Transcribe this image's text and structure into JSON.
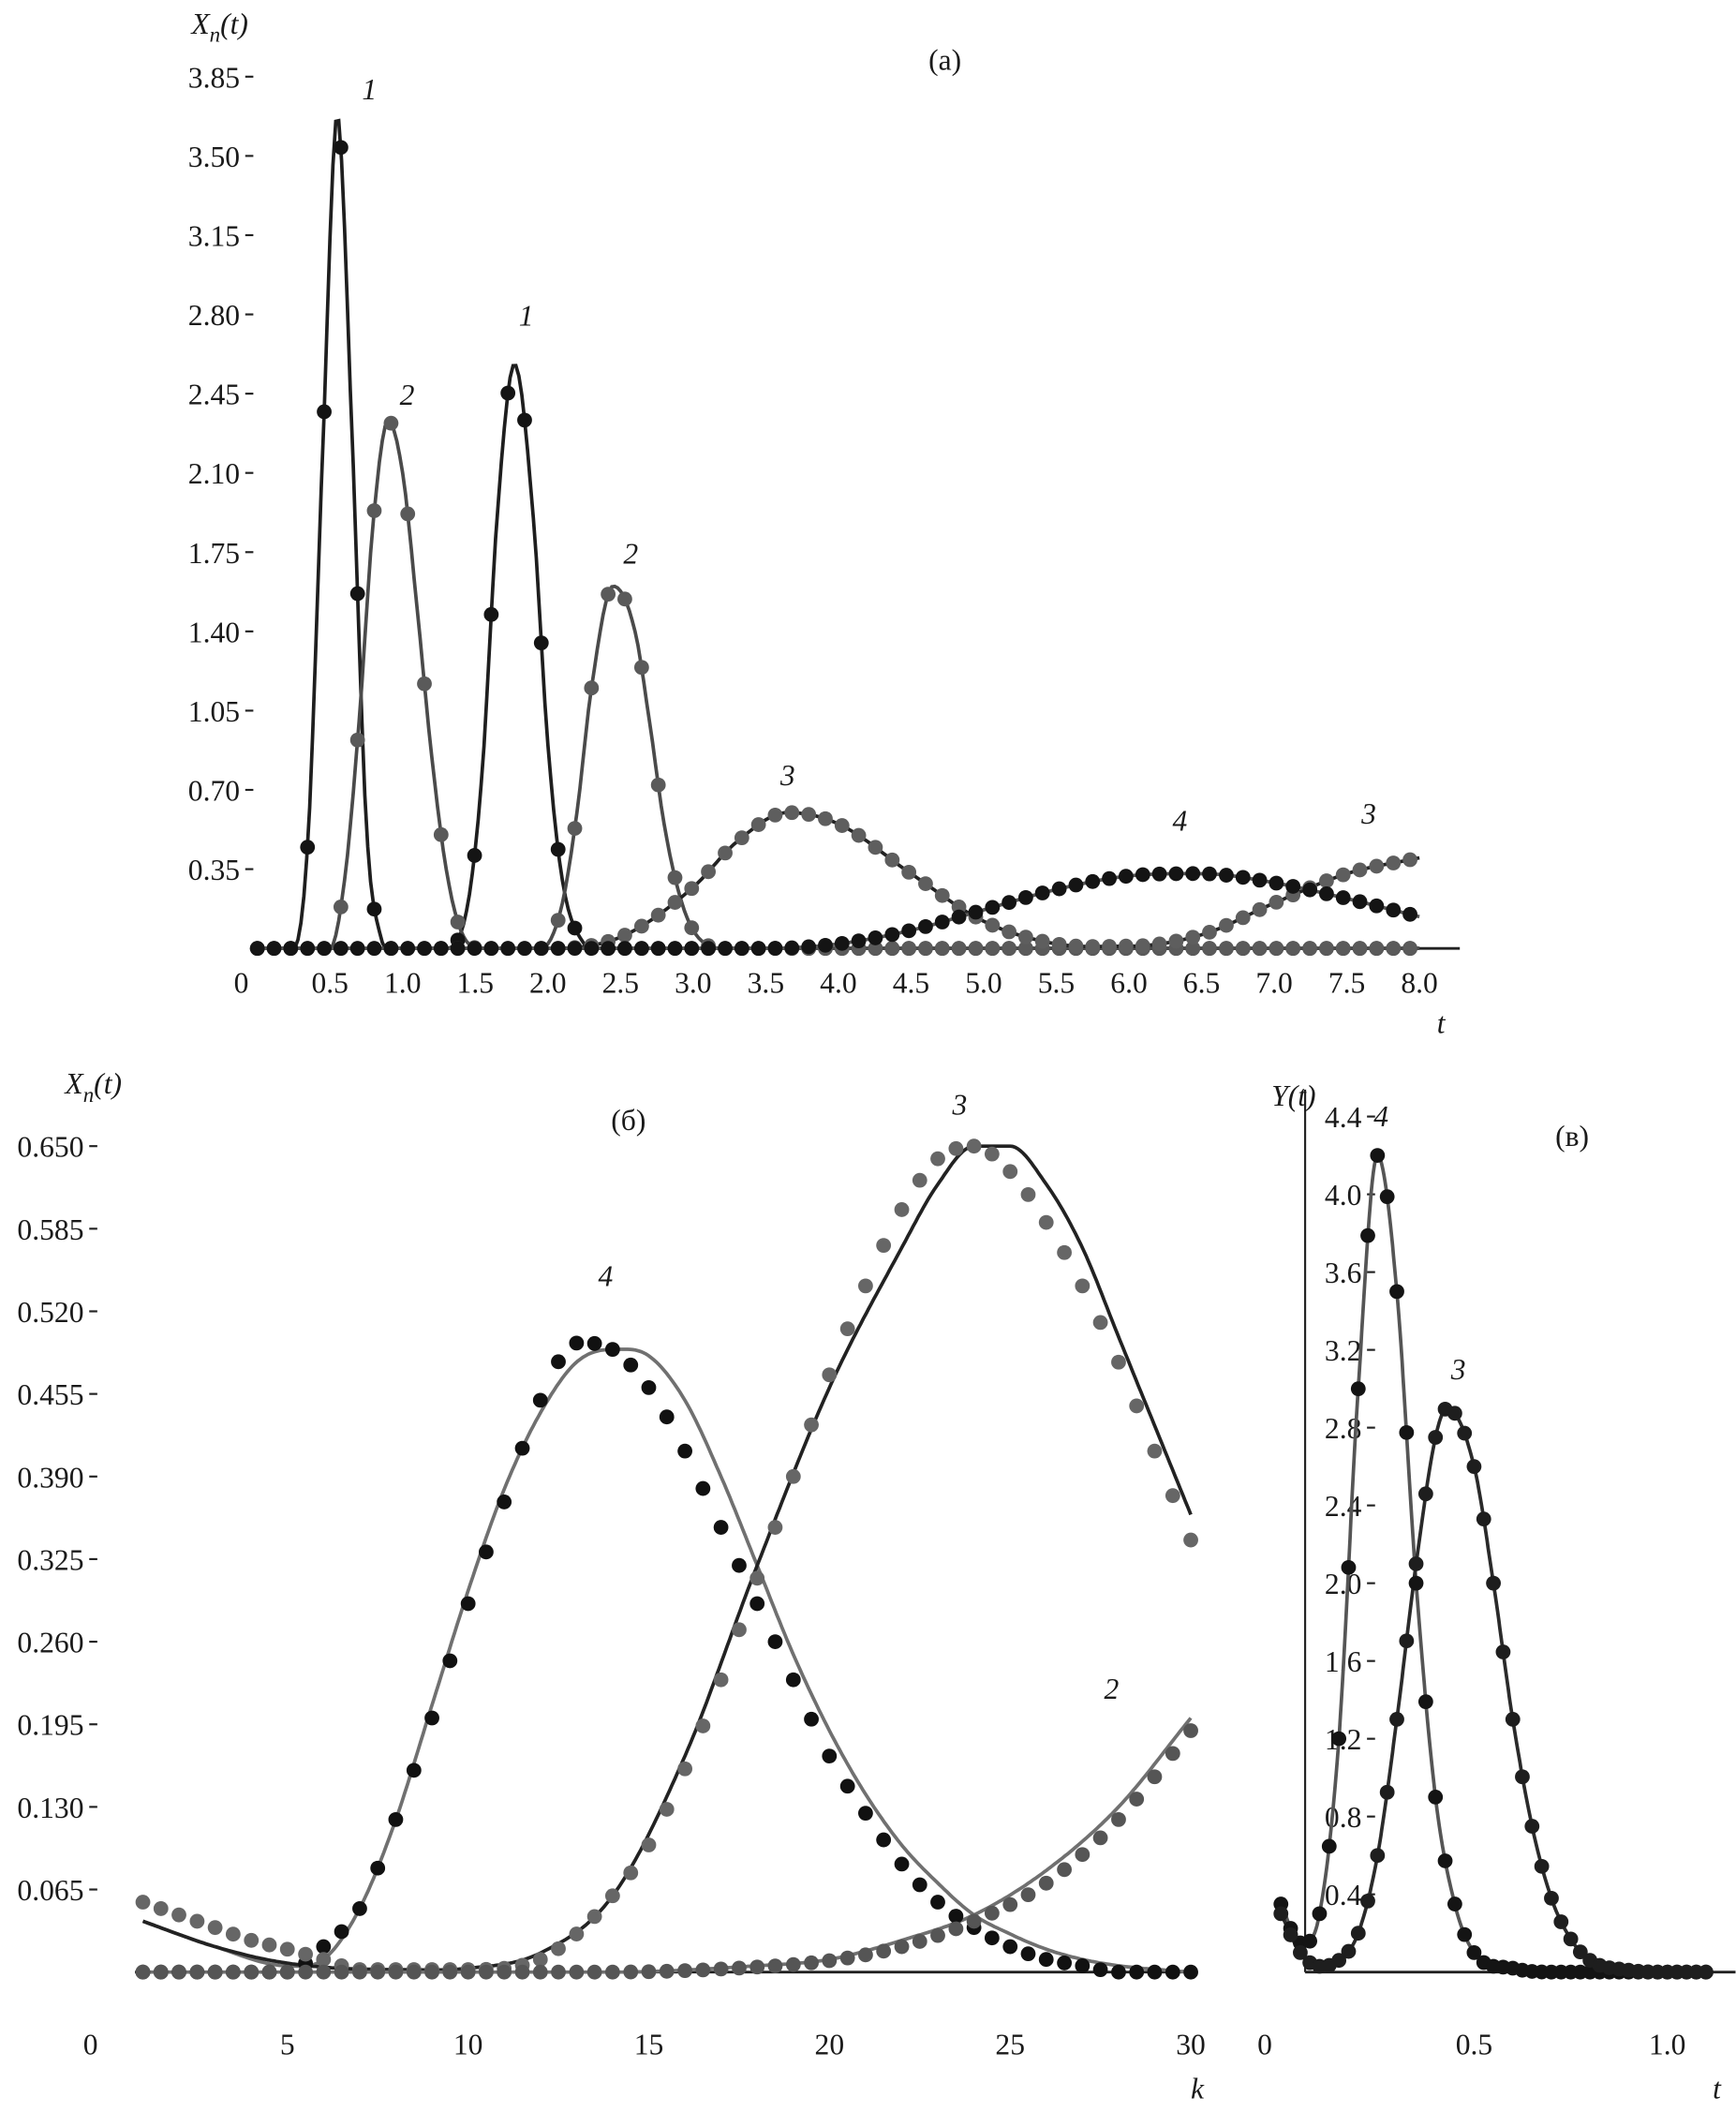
{
  "chart_data": [
    {
      "id": "a",
      "type": "line",
      "panel_label": "(a)",
      "ylabel": "X_n(t)",
      "xlabel": "t",
      "xlim": [
        0,
        8.0
      ],
      "ylim": [
        0,
        3.85
      ],
      "x_ticks": [
        "0",
        "0.5",
        "1.0",
        "1.5",
        "2.0",
        "2.5",
        "3.0",
        "3.5",
        "4.0",
        "4.5",
        "5.0",
        "5.5",
        "6.0",
        "6.5",
        "7.0",
        "7.5",
        "8.0"
      ],
      "y_ticks": [
        "0.35",
        "0.70",
        "1.05",
        "1.40",
        "1.75",
        "2.10",
        "2.45",
        "2.80",
        "3.15",
        "3.50",
        "3.85"
      ],
      "grid": false,
      "series": [
        {
          "curve": "1",
          "style": "line+dots",
          "line_color": "#1e1e1e",
          "dot_color": "#141414",
          "x": [
            0,
            0.25,
            0.35,
            0.45,
            0.55,
            0.65,
            0.75,
            0.85,
            1.0,
            1.3,
            1.45,
            1.55,
            1.65,
            1.77,
            1.9,
            2.0,
            2.1,
            2.25,
            2.5,
            8.0
          ],
          "y": [
            0,
            0,
            0.5,
            2.2,
            3.68,
            2.3,
            0.55,
            0.05,
            0,
            0,
            0.2,
            0.8,
            1.9,
            2.58,
            1.9,
            0.9,
            0.3,
            0.02,
            0,
            0
          ]
        },
        {
          "curve": "2",
          "style": "line+dots",
          "line_color": "#4a4a4a",
          "dot_color": "#5a5a5a",
          "x": [
            0,
            0.5,
            0.6,
            0.7,
            0.8,
            0.9,
            1.0,
            1.1,
            1.2,
            1.3,
            1.4,
            1.55,
            2.0,
            2.1,
            2.2,
            2.3,
            2.45,
            2.6,
            2.7,
            2.8,
            2.9,
            3.0,
            3.2,
            8.0
          ],
          "y": [
            0,
            0,
            0.3,
            1.0,
            1.9,
            2.33,
            2.1,
            1.5,
            0.85,
            0.35,
            0.08,
            0,
            0.02,
            0.2,
            0.6,
            1.15,
            1.6,
            1.4,
            1.0,
            0.55,
            0.25,
            0.08,
            0,
            0
          ]
        },
        {
          "curve": "3",
          "style": "line+dots",
          "line_color": "#222222",
          "dot_color": "#5e5e5e",
          "x": [
            0,
            2.0,
            2.5,
            3.0,
            3.3,
            3.65,
            4.0,
            4.5,
            5.0,
            5.5,
            6.0,
            6.5,
            7.0,
            7.5,
            8.0
          ],
          "y": [
            0,
            0,
            0.05,
            0.27,
            0.47,
            0.6,
            0.55,
            0.33,
            0.12,
            0.02,
            0.01,
            0.06,
            0.2,
            0.33,
            0.4
          ]
        },
        {
          "curve": "4",
          "style": "line+dots",
          "line_color": "#555555",
          "dot_color": "#141414",
          "x": [
            0,
            3.5,
            4.0,
            4.5,
            5.0,
            5.5,
            6.0,
            6.5,
            7.0,
            7.5,
            8.0
          ],
          "y": [
            0,
            0,
            0.02,
            0.08,
            0.17,
            0.26,
            0.32,
            0.33,
            0.29,
            0.22,
            0.14
          ]
        }
      ],
      "curve_labels": [
        {
          "text": "1",
          "x": 0.72,
          "y": 3.75
        },
        {
          "text": "2",
          "x": 0.98,
          "y": 2.4
        },
        {
          "text": "1",
          "x": 1.8,
          "y": 2.75
        },
        {
          "text": "2",
          "x": 2.52,
          "y": 1.7
        },
        {
          "text": "3",
          "x": 3.6,
          "y": 0.72
        },
        {
          "text": "4",
          "x": 6.3,
          "y": 0.52
        },
        {
          "text": "3",
          "x": 7.6,
          "y": 0.55
        }
      ]
    },
    {
      "id": "b",
      "type": "line",
      "panel_label": "(б)",
      "ylabel": "X_n(t)",
      "xlabel": "k",
      "xlim": [
        0,
        30
      ],
      "ylim": [
        0,
        0.65
      ],
      "x_ticks": [
        "0",
        "5",
        "10",
        "15",
        "20",
        "25",
        "30"
      ],
      "y_ticks": [
        "0.065",
        "0.130",
        "0.195",
        "0.260",
        "0.325",
        "0.390",
        "0.455",
        "0.520",
        "0.585",
        "0.650"
      ],
      "grid": false,
      "series": [
        {
          "curve": "4",
          "style": "line",
          "line_color": "#707070",
          "x": [
            1,
            3,
            5,
            6,
            7,
            8,
            9,
            10,
            11,
            12,
            13,
            14,
            15,
            16,
            17,
            18,
            19,
            20,
            21,
            22,
            23,
            24,
            25,
            26,
            27,
            28,
            30
          ],
          "y": [
            0.04,
            0.02,
            0.005,
            0.01,
            0.05,
            0.12,
            0.21,
            0.3,
            0.38,
            0.44,
            0.48,
            0.49,
            0.485,
            0.45,
            0.39,
            0.32,
            0.25,
            0.19,
            0.14,
            0.1,
            0.07,
            0.045,
            0.03,
            0.018,
            0.01,
            0.005,
            0
          ]
        },
        {
          "curve": "4",
          "style": "dots",
          "dot_color": "#111111",
          "x": [
            1,
            5,
            6,
            7,
            8,
            9,
            10,
            11,
            12,
            13,
            14,
            15,
            16,
            17,
            18,
            19,
            20,
            21,
            22,
            23,
            24,
            25,
            26,
            27,
            28,
            30
          ],
          "y": [
            0,
            0,
            0.02,
            0.05,
            0.12,
            0.2,
            0.29,
            0.37,
            0.45,
            0.495,
            0.49,
            0.46,
            0.41,
            0.35,
            0.29,
            0.23,
            0.17,
            0.125,
            0.085,
            0.055,
            0.035,
            0.02,
            0.01,
            0.005,
            0,
            0
          ]
        },
        {
          "curve": "3",
          "style": "line",
          "line_color": "#222222",
          "x": [
            1,
            3,
            5,
            8,
            10,
            12,
            14,
            16,
            18,
            20,
            22,
            23,
            24,
            25,
            26,
            27,
            28,
            29,
            30
          ],
          "y": [
            0.04,
            0.02,
            0.007,
            0.002,
            0.003,
            0.015,
            0.06,
            0.17,
            0.32,
            0.46,
            0.57,
            0.62,
            0.65,
            0.65,
            0.62,
            0.57,
            0.5,
            0.43,
            0.36
          ]
        },
        {
          "curve": "3",
          "style": "dots",
          "dot_color": "#666666",
          "x": [
            1,
            2,
            3,
            4,
            5,
            6,
            7,
            10,
            12,
            13,
            14,
            15,
            16,
            17,
            18,
            19,
            20,
            21,
            22,
            23,
            24,
            25,
            26,
            27,
            28,
            29,
            30
          ],
          "y": [
            0.055,
            0.045,
            0.035,
            0.025,
            0.018,
            0.01,
            0.002,
            0.002,
            0.01,
            0.03,
            0.06,
            0.1,
            0.16,
            0.23,
            0.31,
            0.39,
            0.47,
            0.54,
            0.6,
            0.64,
            0.65,
            0.63,
            0.59,
            0.54,
            0.48,
            0.41,
            0.34
          ]
        },
        {
          "curve": "2",
          "style": "line",
          "line_color": "#707070",
          "x": [
            1,
            14,
            18,
            20,
            22,
            24,
            26,
            28,
            30
          ],
          "y": [
            0,
            0,
            0.005,
            0.01,
            0.025,
            0.045,
            0.08,
            0.13,
            0.2
          ]
        },
        {
          "curve": "2",
          "style": "dots",
          "dot_color": "#555555",
          "x": [
            1,
            14,
            18,
            20,
            22,
            24,
            26,
            28,
            30
          ],
          "y": [
            0,
            0,
            0.004,
            0.009,
            0.02,
            0.04,
            0.07,
            0.12,
            0.19
          ]
        }
      ],
      "curve_labels": [
        {
          "text": "4",
          "x": 13.6,
          "y": 0.54
        },
        {
          "text": "3",
          "x": 23.4,
          "y": 0.675
        },
        {
          "text": "2",
          "x": 27.6,
          "y": 0.215
        }
      ]
    },
    {
      "id": "c",
      "type": "line",
      "panel_label": "(в)",
      "ylabel": "Y(t)",
      "xlabel": "t",
      "xlim": [
        0,
        1.1
      ],
      "ylim": [
        0,
        4.4
      ],
      "x_ticks": [
        "0",
        "0.5",
        "1.0"
      ],
      "y_ticks": [
        "0.4",
        "0.8",
        "1.2",
        "1.6",
        "2.0",
        "2.4",
        "2.8",
        "3.2",
        "3.6",
        "4.0",
        "4.4"
      ],
      "grid": false,
      "series": [
        {
          "curve": "4",
          "style": "line+dots",
          "line_color": "#555555",
          "dot_color": "#141414",
          "x": [
            0,
            0.05,
            0.1,
            0.15,
            0.2,
            0.25,
            0.3,
            0.35,
            0.4,
            0.45,
            0.5,
            0.6,
            0.7,
            1.1
          ],
          "y": [
            0.35,
            0.15,
            0.3,
            1.2,
            3.0,
            4.2,
            3.5,
            2.0,
            0.9,
            0.35,
            0.1,
            0.02,
            0,
            0
          ]
        },
        {
          "curve": "3",
          "style": "line+dots",
          "line_color": "#2a2a2a",
          "dot_color": "#1e1e1e",
          "x": [
            0,
            0.05,
            0.1,
            0.15,
            0.2,
            0.25,
            0.3,
            0.35,
            0.4,
            0.43,
            0.5,
            0.55,
            0.6,
            0.65,
            0.7,
            0.75,
            0.8,
            0.9,
            1.0,
            1.1
          ],
          "y": [
            0.3,
            0.1,
            0.03,
            0.06,
            0.2,
            0.6,
            1.3,
            2.1,
            2.75,
            2.9,
            2.6,
            2.0,
            1.3,
            0.75,
            0.38,
            0.17,
            0.06,
            0.01,
            0,
            0
          ]
        }
      ],
      "curve_labels": [
        {
          "text": "4",
          "x": 0.24,
          "y": 4.35
        },
        {
          "text": "3",
          "x": 0.44,
          "y": 3.05
        }
      ]
    }
  ]
}
